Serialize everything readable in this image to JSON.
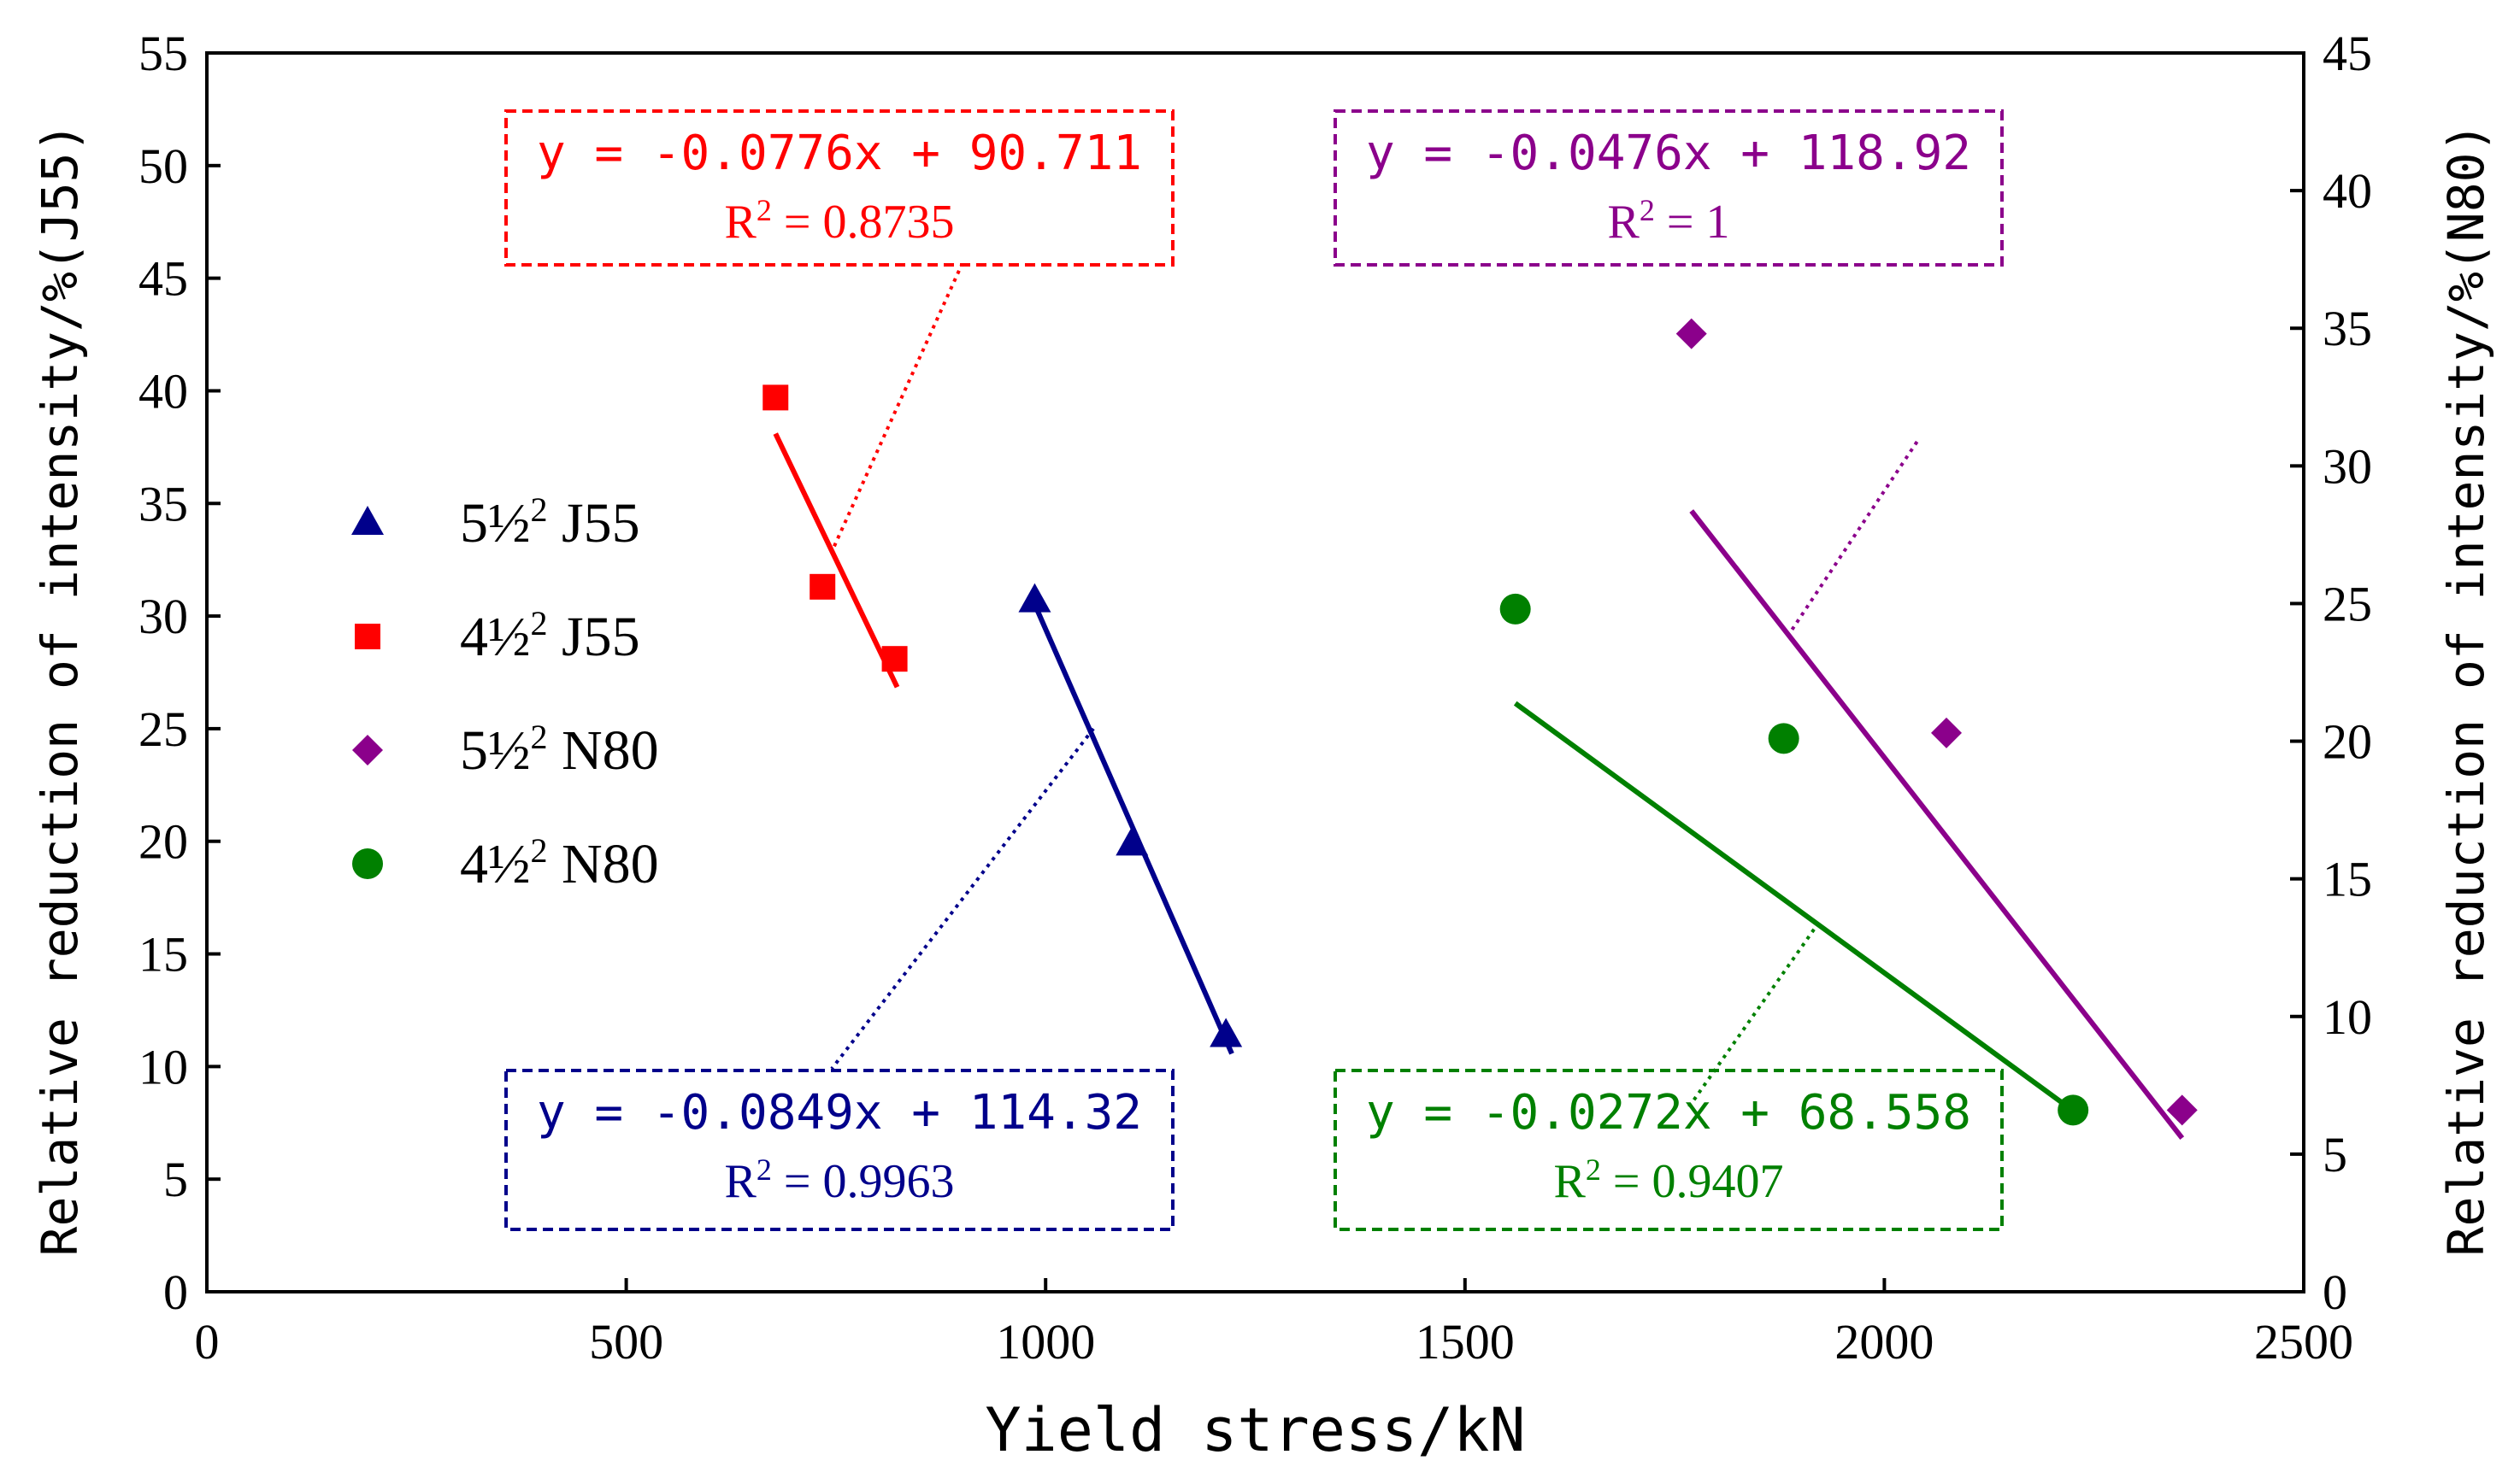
{
  "chart_data": {
    "type": "scatter",
    "xlabel": "Yield stress/kN",
    "ylabel_left": "Relative reduction of intensity/%(J55)",
    "ylabel_right": "Relative reduction of intensity/%(N80)",
    "xlim": [
      0,
      2500
    ],
    "xticks": [
      0,
      500,
      1000,
      1500,
      2000,
      2500
    ],
    "ylim_left": [
      0,
      55
    ],
    "yticks_left": [
      0,
      5,
      10,
      15,
      20,
      25,
      30,
      35,
      40,
      45,
      50,
      55
    ],
    "ylim_right": [
      0,
      45
    ],
    "yticks_right": [
      0,
      5,
      10,
      15,
      20,
      25,
      30,
      35,
      40,
      45
    ],
    "series": [
      {
        "name": "5½² J55",
        "label_base": "5½",
        "label_sup": "2",
        "label_tail": " J55",
        "axis": "left",
        "color": "#00008B",
        "marker": "triangle",
        "points": [
          [
            987,
            30.7
          ],
          [
            1103,
            19.9
          ],
          [
            1215,
            11.4
          ]
        ],
        "trendline": {
          "x": [
            987,
            1222
          ]
        },
        "equation": "y = -0.0849x + 114.32",
        "r2_label": "R",
        "r2_sup": "2",
        "r2_value": " = 0.9963",
        "slope": -0.0849,
        "intercept": 114.32,
        "box": {
          "corner": "bottom-left",
          "leader_from": [
            1057,
            25
          ],
          "leader_to": [
            745,
            9.9
          ]
        }
      },
      {
        "name": "4½² J55",
        "label_base": "4½",
        "label_sup": "2",
        "label_tail": " J55",
        "axis": "left",
        "color": "#FF0000",
        "marker": "square",
        "points": [
          [
            678,
            39.7
          ],
          [
            734,
            31.3
          ],
          [
            820,
            28.1
          ]
        ],
        "trendline": {
          "x": [
            678,
            823
          ]
        },
        "equation": "y = -0.0776x + 90.711",
        "r2_label": "R",
        "r2_sup": "2",
        "r2_value": " = 0.8735",
        "slope": -0.0776,
        "intercept": 90.711,
        "box": {
          "corner": "top-left",
          "leader_from": [
            748,
            33.1
          ],
          "leader_to": [
            900,
            45.6
          ]
        }
      },
      {
        "name": "5½² N80",
        "label_base": "5½",
        "label_sup": "2",
        "label_tail": " N80",
        "axis": "right",
        "color": "#8B008B",
        "marker": "diamond",
        "points": [
          [
            1770,
            34.8
          ],
          [
            2074,
            20.3
          ],
          [
            2355,
            6.6
          ]
        ],
        "trendline": {
          "x": [
            1770,
            2355
          ]
        },
        "equation": "y = -0.0476x + 118.92",
        "r2_label": "R",
        "r2_sup": "2",
        "r2_value": " = 1",
        "slope": -0.0476,
        "intercept": 118.92,
        "box": {
          "corner": "top-right",
          "leader_from": [
            1890,
            29.4
          ],
          "leader_to": [
            2040,
            37.8
          ]
        }
      },
      {
        "name": "4½² N80",
        "label_base": "4½",
        "label_sup": "2",
        "label_tail": " N80",
        "axis": "right",
        "color": "#008000",
        "marker": "circle",
        "points": [
          [
            1560,
            24.8
          ],
          [
            1880,
            20.1
          ],
          [
            2225,
            6.6
          ]
        ],
        "trendline": {
          "x": [
            1560,
            2225
          ]
        },
        "equation": "y = -0.0272x + 68.558",
        "r2_label": "R",
        "r2_sup": "2",
        "r2_value": " = 0.9407",
        "slope": -0.0272,
        "intercept": 68.558,
        "box": {
          "corner": "bottom-right",
          "leader_from": [
            1922,
            16.4
          ],
          "leader_to": [
            1765,
            8.1
          ]
        }
      }
    ]
  }
}
